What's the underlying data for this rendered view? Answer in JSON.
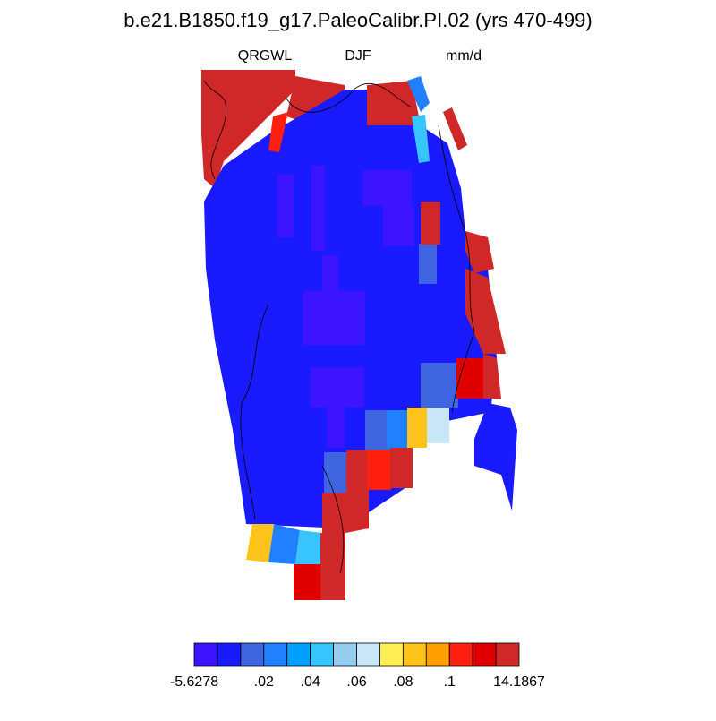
{
  "header": {
    "title": "b.e21.B1850.f19_g17.PaleoCalibr.PI.02 (yrs 470-499)",
    "left": "QRGWL",
    "center": "DJF",
    "right": "mm/d"
  },
  "colorbar": {
    "colors": [
      "#3c14ff",
      "#1a1aff",
      "#3f64e0",
      "#2080ff",
      "#00a0ff",
      "#38c4ff",
      "#96ccee",
      "#c8e6f8",
      "#ffee55",
      "#ffc41c",
      "#ffa000",
      "#ff2010",
      "#e00000",
      "#d02828"
    ],
    "levels": [
      -5.6278,
      0,
      0.01,
      0.02,
      0.03,
      0.04,
      0.05,
      0.06,
      0.07,
      0.08,
      0.09,
      0.1,
      0.11,
      0.12,
      14.1867
    ],
    "tick_labels": [
      {
        "value": -5.6278,
        "label": "-5.6278"
      },
      {
        "value": 0.02,
        "label": ".02"
      },
      {
        "value": 0.04,
        "label": ".04"
      },
      {
        "value": 0.06,
        "label": ".06"
      },
      {
        "value": 0.08,
        "label": ".08"
      },
      {
        "value": 0.1,
        "label": ".1"
      },
      {
        "value": 14.1867,
        "label": "14.1867"
      }
    ]
  }
}
